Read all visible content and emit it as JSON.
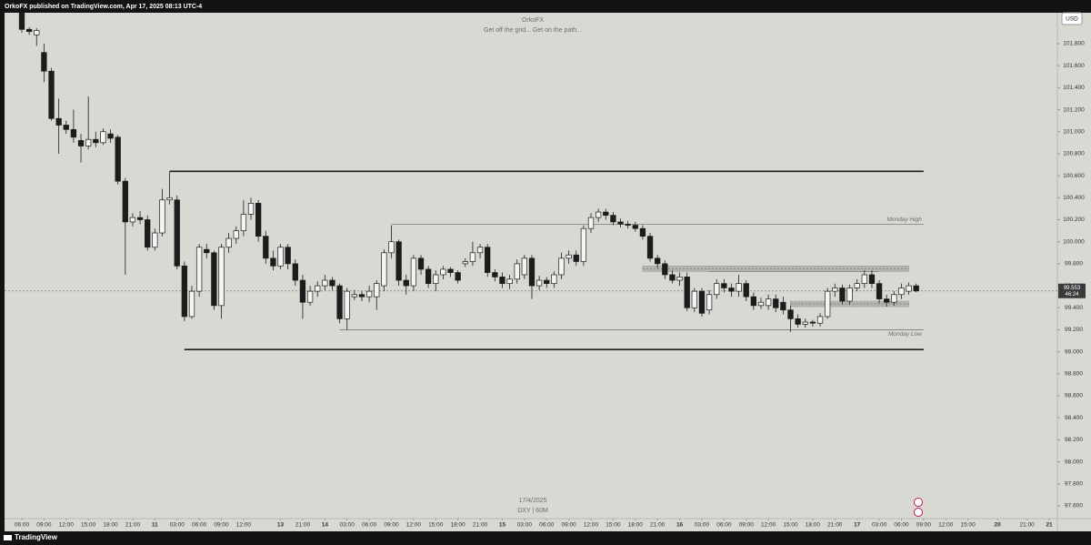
{
  "header": {
    "publisher": "OrkoFX published on TradingView.com, Apr 17, 2025 08:13 UTC-4"
  },
  "footer": {
    "brand": "TradingView"
  },
  "chart_data": {
    "type": "candlestick",
    "title": "OrkoFX",
    "subtitle": "Get off the grid... Get on the path...",
    "date_label": "17/4/2025",
    "symbol_label": "DXY | 60M",
    "currency": "USD",
    "current_price": 99.553,
    "countdown": "46:24",
    "up_color": "#f4f4f2",
    "down_color": "#1c1c1c",
    "open": [
      102.1,
      101.93,
      101.88,
      101.72,
      101.55,
      101.12,
      101.06,
      101.02,
      100.92,
      100.87,
      100.93,
      100.9,
      100.98,
      100.95,
      100.55,
      100.18,
      100.22,
      100.2,
      99.95,
      100.08,
      100.38,
      100.38,
      99.78,
      99.32,
      99.55,
      99.93,
      99.9,
      99.42,
      99.95,
      100.03,
      100.1,
      100.25,
      100.35,
      100.05,
      99.85,
      99.78,
      99.95,
      99.8,
      99.65,
      99.45,
      99.55,
      99.6,
      99.65,
      99.6,
      99.3,
      99.5,
      99.52,
      99.5,
      99.5,
      99.6,
      99.9,
      100.0,
      99.65,
      99.6,
      99.85,
      99.75,
      99.62,
      99.7,
      99.75,
      99.72,
      99.8,
      99.82,
      99.9,
      99.95,
      99.72,
      99.68,
      99.62,
      99.66,
      99.7,
      99.85,
      99.6,
      99.65,
      99.62,
      99.7,
      99.85,
      99.88,
      99.82,
      100.12,
      100.22,
      100.27,
      100.24,
      100.18,
      100.16,
      100.15,
      100.12,
      100.05,
      99.85,
      99.8,
      99.7,
      99.65,
      99.68,
      99.4,
      99.55,
      99.38,
      99.52,
      99.62,
      99.58,
      99.55,
      99.62,
      99.5,
      99.42,
      99.42,
      99.48,
      99.45,
      99.38,
      99.3,
      99.25,
      99.27,
      99.26,
      99.32,
      99.55,
      99.58,
      99.46,
      99.58,
      99.62,
      99.7,
      99.62,
      99.48,
      99.45,
      99.52,
      99.55,
      99.6
    ],
    "high": [
      102.12,
      101.95,
      101.94,
      101.8,
      101.58,
      101.3,
      101.1,
      101.2,
      100.98,
      101.32,
      101.0,
      101.03,
      101.02,
      100.97,
      100.58,
      100.26,
      100.28,
      100.24,
      100.12,
      100.48,
      100.64,
      100.42,
      99.82,
      99.6,
      99.98,
      99.98,
      99.92,
      99.98,
      100.08,
      100.14,
      100.38,
      100.4,
      100.38,
      100.1,
      99.92,
      99.98,
      99.98,
      99.84,
      99.7,
      99.6,
      99.64,
      99.7,
      99.68,
      99.62,
      99.58,
      99.56,
      99.55,
      99.6,
      99.65,
      99.93,
      100.15,
      100.02,
      99.7,
      99.88,
      99.88,
      99.78,
      99.74,
      99.78,
      99.77,
      99.74,
      99.85,
      100.0,
      99.98,
      99.98,
      99.75,
      99.72,
      99.7,
      99.84,
      99.88,
      99.88,
      99.69,
      99.68,
      99.73,
      99.9,
      99.92,
      99.92,
      100.15,
      100.26,
      100.3,
      100.3,
      100.27,
      100.21,
      100.19,
      100.18,
      100.15,
      100.08,
      99.88,
      99.83,
      99.74,
      99.72,
      99.72,
      99.58,
      99.58,
      99.56,
      99.66,
      99.66,
      99.62,
      99.7,
      99.65,
      99.54,
      99.49,
      99.52,
      99.52,
      99.5,
      99.42,
      99.34,
      99.3,
      99.29,
      99.35,
      99.58,
      99.62,
      99.61,
      99.61,
      99.66,
      99.74,
      99.74,
      99.65,
      99.52,
      99.55,
      99.62,
      99.63,
      99.62
    ],
    "low": [
      101.9,
      101.88,
      101.78,
      101.45,
      101.1,
      100.8,
      100.98,
      100.9,
      100.72,
      100.84,
      100.86,
      100.88,
      100.9,
      100.52,
      99.7,
      100.14,
      100.16,
      99.92,
      99.92,
      100.05,
      100.34,
      99.75,
      99.28,
      99.3,
      99.5,
      99.85,
      99.38,
      99.3,
      99.9,
      99.98,
      100.05,
      100.2,
      100.0,
      99.8,
      99.74,
      99.75,
      99.75,
      99.6,
      99.3,
      99.42,
      99.5,
      99.56,
      99.56,
      99.26,
      99.2,
      99.47,
      99.46,
      99.45,
      99.38,
      99.55,
      99.85,
      99.6,
      99.52,
      99.55,
      99.7,
      99.58,
      99.55,
      99.66,
      99.68,
      99.62,
      99.77,
      99.78,
      99.85,
      99.68,
      99.64,
      99.58,
      99.57,
      99.62,
      99.66,
      99.48,
      99.56,
      99.58,
      99.58,
      99.66,
      99.8,
      99.78,
      99.78,
      100.08,
      100.18,
      100.2,
      100.15,
      100.13,
      100.12,
      100.09,
      100.02,
      99.82,
      99.76,
      99.66,
      99.62,
      99.6,
      99.37,
      99.36,
      99.32,
      99.34,
      99.48,
      99.54,
      99.5,
      99.5,
      99.46,
      99.38,
      99.39,
      99.38,
      99.36,
      99.34,
      99.18,
      99.22,
      99.22,
      99.23,
      99.23,
      99.3,
      99.5,
      99.43,
      99.43,
      99.55,
      99.58,
      99.58,
      99.44,
      99.41,
      99.42,
      99.48,
      99.52,
      99.54
    ],
    "close": [
      101.93,
      101.91,
      101.92,
      101.55,
      101.12,
      101.06,
      101.02,
      100.95,
      100.87,
      100.93,
      100.9,
      101.0,
      100.94,
      100.55,
      100.18,
      100.22,
      100.2,
      99.95,
      100.08,
      100.38,
      100.4,
      99.78,
      99.32,
      99.55,
      99.95,
      99.9,
      99.42,
      99.95,
      100.03,
      100.1,
      100.25,
      100.35,
      100.05,
      99.85,
      99.78,
      99.95,
      99.8,
      99.65,
      99.45,
      99.55,
      99.6,
      99.65,
      99.6,
      99.3,
      99.55,
      99.52,
      99.5,
      99.55,
      99.62,
      99.9,
      100.0,
      99.65,
      99.6,
      99.85,
      99.75,
      99.62,
      99.7,
      99.75,
      99.72,
      99.65,
      99.82,
      99.9,
      99.95,
      99.72,
      99.68,
      99.62,
      99.66,
      99.8,
      99.85,
      99.6,
      99.65,
      99.62,
      99.7,
      99.85,
      99.88,
      99.82,
      100.12,
      100.22,
      100.27,
      100.24,
      100.18,
      100.16,
      100.15,
      100.12,
      100.05,
      99.85,
      99.8,
      99.7,
      99.65,
      99.68,
      99.4,
      99.55,
      99.35,
      99.52,
      99.62,
      99.58,
      99.55,
      99.62,
      99.5,
      99.42,
      99.45,
      99.48,
      99.4,
      99.38,
      99.3,
      99.25,
      99.27,
      99.26,
      99.32,
      99.55,
      99.58,
      99.46,
      99.58,
      99.62,
      99.7,
      99.62,
      99.48,
      99.45,
      99.52,
      99.58,
      99.6,
      99.553
    ],
    "ylim": [
      97.484,
      102.081
    ],
    "yticks": [
      {
        "value": 101.8,
        "label": "101.800"
      },
      {
        "value": 101.6,
        "label": "101.600"
      },
      {
        "value": 101.4,
        "label": "101.400"
      },
      {
        "value": 101.2,
        "label": "101.200"
      },
      {
        "value": 101.0,
        "label": "101.000"
      },
      {
        "value": 100.8,
        "label": "100.800"
      },
      {
        "value": 100.6,
        "label": "100.600"
      },
      {
        "value": 100.4,
        "label": "100.400"
      },
      {
        "value": 100.2,
        "label": "100.200"
      },
      {
        "value": 100.0,
        "label": "100.000"
      },
      {
        "value": 99.8,
        "label": "99.800"
      },
      {
        "value": 99.6,
        "label": "99.600"
      },
      {
        "value": 99.4,
        "label": "99.400"
      },
      {
        "value": 99.2,
        "label": "99.200"
      },
      {
        "value": 99.0,
        "label": "99.000"
      },
      {
        "value": 98.8,
        "label": "98.800"
      },
      {
        "value": 98.6,
        "label": "98.600"
      },
      {
        "value": 98.4,
        "label": "98.400"
      },
      {
        "value": 98.2,
        "label": "98.200"
      },
      {
        "value": 98.0,
        "label": "98.000"
      },
      {
        "value": 97.8,
        "label": "97.800"
      },
      {
        "value": 97.6,
        "label": "97.600"
      }
    ],
    "xticks": [
      {
        "value": 0,
        "label": "06:00"
      },
      {
        "value": 3,
        "label": "09:00"
      },
      {
        "value": 6,
        "label": "12:00"
      },
      {
        "value": 9,
        "label": "15:00"
      },
      {
        "value": 12,
        "label": "18:00"
      },
      {
        "value": 15,
        "label": "21:00"
      },
      {
        "value": 18,
        "label": "11"
      },
      {
        "value": 21,
        "label": "03:00"
      },
      {
        "value": 24,
        "label": "06:00"
      },
      {
        "value": 27,
        "label": "09:00"
      },
      {
        "value": 30,
        "label": "12:00"
      },
      {
        "value": 35,
        "label": "13"
      },
      {
        "value": 38,
        "label": "21:00"
      },
      {
        "value": 41,
        "label": "14"
      },
      {
        "value": 44,
        "label": "03:00"
      },
      {
        "value": 47,
        "label": "06:00"
      },
      {
        "value": 50,
        "label": "09:00"
      },
      {
        "value": 53,
        "label": "12:00"
      },
      {
        "value": 56,
        "label": "15:00"
      },
      {
        "value": 59,
        "label": "18:00"
      },
      {
        "value": 62,
        "label": "21:00"
      },
      {
        "value": 65,
        "label": "15"
      },
      {
        "value": 68,
        "label": "03:00"
      },
      {
        "value": 71,
        "label": "06:00"
      },
      {
        "value": 74,
        "label": "09:00"
      },
      {
        "value": 77,
        "label": "12:00"
      },
      {
        "value": 80,
        "label": "15:00"
      },
      {
        "value": 83,
        "label": "18:00"
      },
      {
        "value": 86,
        "label": "21:00"
      },
      {
        "value": 89,
        "label": "16"
      },
      {
        "value": 92,
        "label": "03:00"
      },
      {
        "value": 95,
        "label": "06:00"
      },
      {
        "value": 98,
        "label": "09:00"
      },
      {
        "value": 101,
        "label": "12:00"
      },
      {
        "value": 104,
        "label": "15:00"
      },
      {
        "value": 107,
        "label": "18:00"
      },
      {
        "value": 110,
        "label": "21:00"
      },
      {
        "value": 113,
        "label": "17"
      },
      {
        "value": 116,
        "label": "03:00"
      },
      {
        "value": 119,
        "label": "06:00"
      },
      {
        "value": 122,
        "label": "09:00"
      },
      {
        "value": 125,
        "label": "12:00"
      },
      {
        "value": 128,
        "label": "15:00"
      },
      {
        "value": 132,
        "label": "20"
      },
      {
        "value": 136,
        "label": "21:00"
      },
      {
        "value": 139,
        "label": "21"
      }
    ],
    "lines": [
      {
        "value": 100.64,
        "from": 20,
        "to": 122,
        "weight": "bold"
      },
      {
        "value": 99.02,
        "from": 22,
        "to": 122,
        "weight": "bold"
      },
      {
        "value": 100.16,
        "from": 50,
        "to": 122,
        "weight": "thin",
        "label": "Monday High"
      },
      {
        "value": 99.2,
        "from": 43,
        "to": 122,
        "weight": "thin",
        "label": "Monday Low"
      },
      {
        "value": 99.73,
        "from": 93,
        "to": 116,
        "weight": "thin"
      }
    ],
    "zones": [
      {
        "low": 99.73,
        "high": 99.78,
        "from": 84,
        "to": 120
      },
      {
        "low": 99.41,
        "high": 99.46,
        "from": 104,
        "to": 120
      }
    ]
  }
}
